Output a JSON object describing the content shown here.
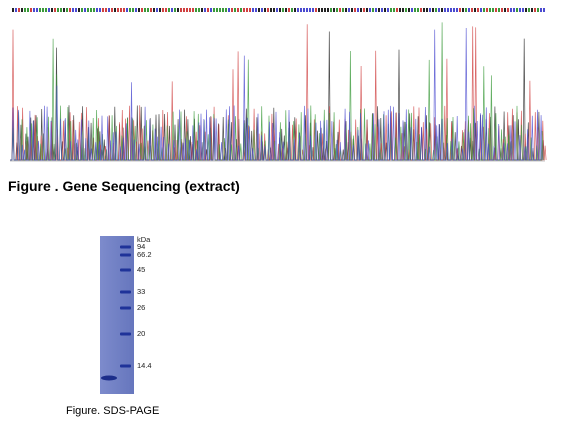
{
  "figure1": {
    "caption": "Figure . Gene Sequencing (extract)"
  },
  "figure2": {
    "caption": "Figure. SDS-PAGE",
    "unit": "kDa",
    "markers": [
      "94",
      "66.2",
      "45",
      "33",
      "26",
      "20",
      "14.4"
    ]
  }
}
